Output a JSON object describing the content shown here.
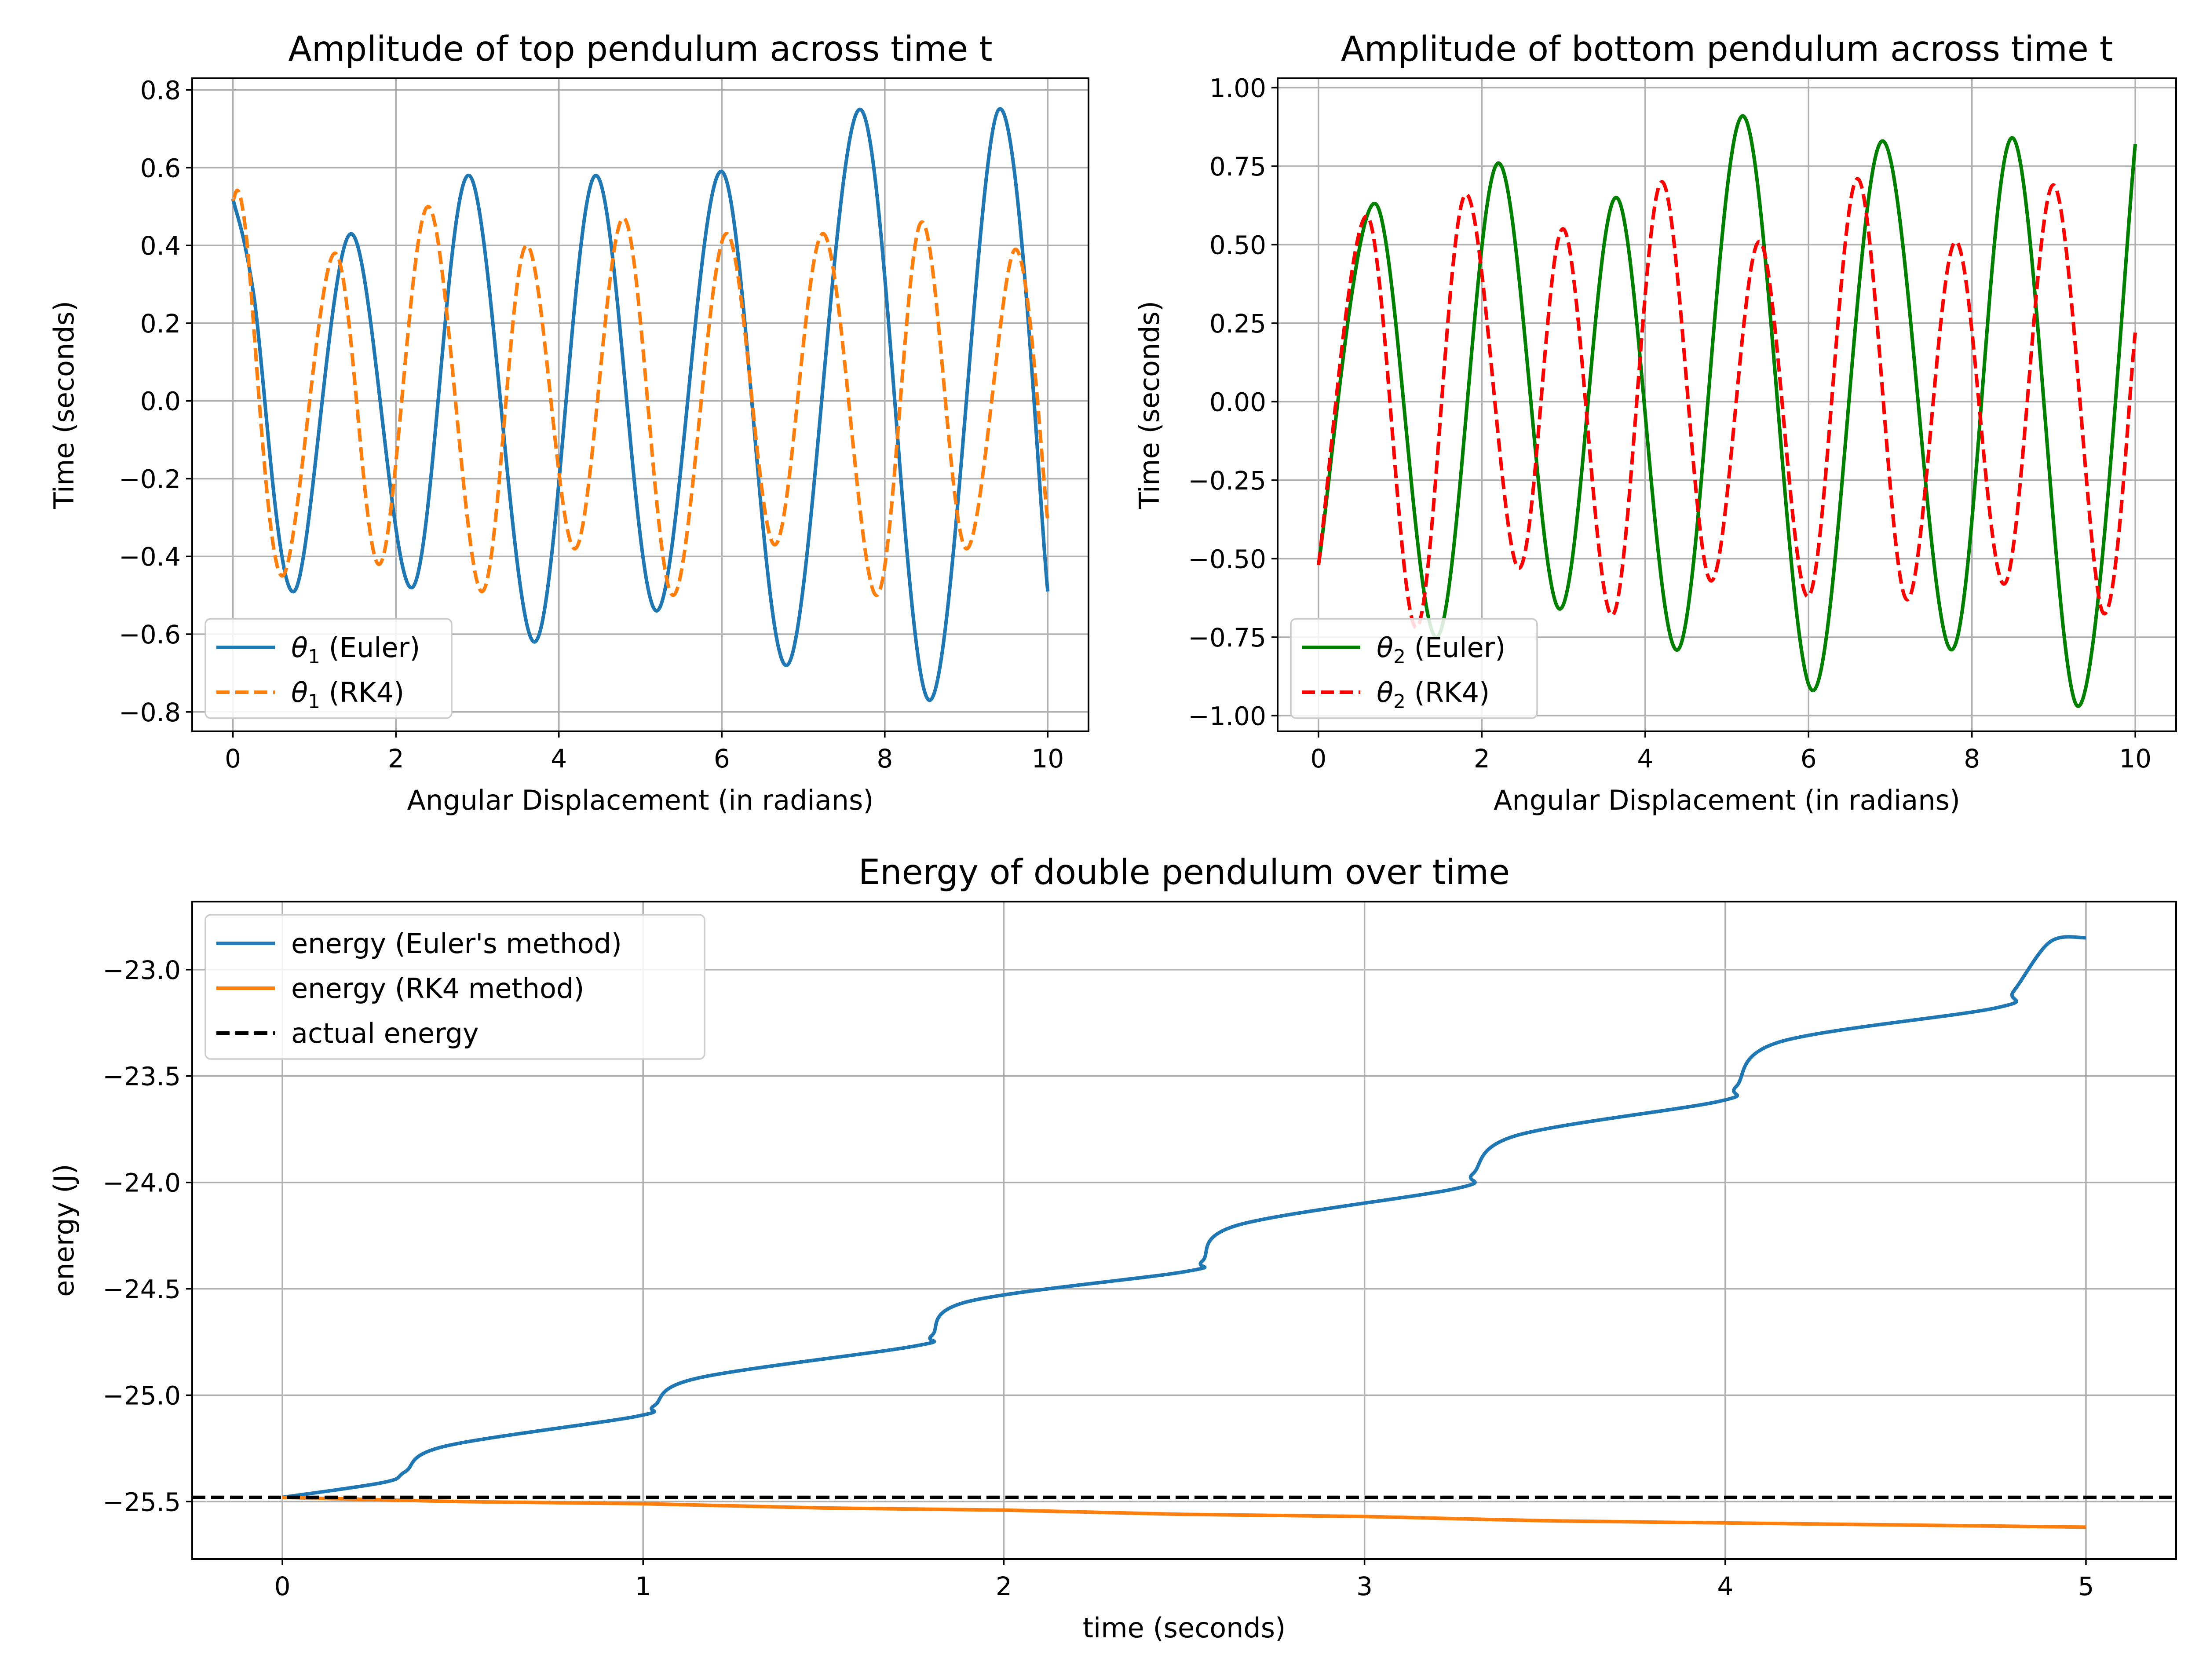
{
  "chart_data": [
    {
      "type": "line",
      "title": "Amplitude of top pendulum across time t",
      "xlabel": "Angular Displacement (in radians)",
      "ylabel": "Time (seconds)",
      "xlim": [
        -0.5,
        10.5
      ],
      "ylim": [
        -0.85,
        0.83
      ],
      "xticks": [
        0,
        2,
        4,
        6,
        8,
        10
      ],
      "xtick_labels": [
        "0",
        "2",
        "4",
        "6",
        "8",
        "10"
      ],
      "yticks": [
        -0.8,
        -0.6,
        -0.4,
        -0.2,
        0.0,
        0.2,
        0.4,
        0.6,
        0.8
      ],
      "ytick_labels": [
        "−0.8",
        "−0.6",
        "−0.4",
        "−0.2",
        "0.0",
        "0.2",
        "0.4",
        "0.6",
        "0.8"
      ],
      "grid": true,
      "legend_loc": "lower left",
      "series": [
        {
          "name": "θ1 (Euler)",
          "label_symbol": "θ",
          "label_sub": "1",
          "label_suffix": " (Euler)",
          "color": "#1f77b4",
          "dash": "solid",
          "x": [
            0,
            0.25,
            0.75,
            1.45,
            2.2,
            2.9,
            3.7,
            4.45,
            5.2,
            6.0,
            6.8,
            7.7,
            8.55,
            9.4,
            10
          ],
          "y": [
            0.52,
            0.28,
            -0.49,
            0.43,
            -0.48,
            0.58,
            -0.62,
            0.58,
            -0.54,
            0.59,
            -0.68,
            0.75,
            -0.77,
            0.75,
            -0.49
          ]
        },
        {
          "name": "θ1 (RK4)",
          "label_symbol": "θ",
          "label_sub": "1",
          "label_suffix": " (RK4)",
          "color": "#ff7f0e",
          "dash": "dashed",
          "x": [
            0,
            0.15,
            0.6,
            1.25,
            1.8,
            2.4,
            3.05,
            3.6,
            4.2,
            4.8,
            5.4,
            6.05,
            6.65,
            7.25,
            7.9,
            8.45,
            9.0,
            9.6,
            10
          ],
          "y": [
            0.52,
            0.45,
            -0.45,
            0.38,
            -0.42,
            0.5,
            -0.49,
            0.4,
            -0.38,
            0.47,
            -0.5,
            0.43,
            -0.37,
            0.43,
            -0.5,
            0.46,
            -0.38,
            0.39,
            -0.31
          ]
        }
      ]
    },
    {
      "type": "line",
      "title": "Amplitude of bottom pendulum across time t",
      "xlabel": "Angular Displacement (in radians)",
      "ylabel": "Time (seconds)",
      "xlim": [
        -0.5,
        10.5
      ],
      "ylim": [
        -1.05,
        1.03
      ],
      "xticks": [
        0,
        2,
        4,
        6,
        8,
        10
      ],
      "xtick_labels": [
        "0",
        "2",
        "4",
        "6",
        "8",
        "10"
      ],
      "yticks": [
        -1.0,
        -0.75,
        -0.5,
        -0.25,
        0.0,
        0.25,
        0.5,
        0.75,
        1.0
      ],
      "ytick_labels": [
        "−1.00",
        "−0.75",
        "−0.50",
        "−0.25",
        "0.00",
        "0.25",
        "0.50",
        "0.75",
        "1.00"
      ],
      "grid": true,
      "legend_loc": "lower left",
      "series": [
        {
          "name": "θ2 (Euler)",
          "label_symbol": "θ",
          "label_sub": "2",
          "label_suffix": " (Euler)",
          "color": "#008000",
          "dash": "solid",
          "x": [
            0,
            0.7,
            1.45,
            2.2,
            2.95,
            3.65,
            4.4,
            5.2,
            6.05,
            6.9,
            7.75,
            8.5,
            9.3,
            10
          ],
          "y": [
            -0.52,
            0.63,
            -0.75,
            0.76,
            -0.66,
            0.65,
            -0.79,
            0.91,
            -0.92,
            0.83,
            -0.79,
            0.84,
            -0.97,
            0.82
          ]
        },
        {
          "name": "θ2 (RK4)",
          "label_symbol": "θ",
          "label_sub": "2",
          "label_suffix": " (RK4)",
          "color": "#ff0000",
          "dash": "dashed",
          "x": [
            0,
            0.6,
            1.2,
            1.8,
            2.45,
            3.0,
            3.6,
            4.2,
            4.8,
            5.4,
            6.0,
            6.6,
            7.2,
            7.8,
            8.4,
            9.0,
            9.6,
            10
          ],
          "y": [
            -0.52,
            0.59,
            -0.72,
            0.66,
            -0.53,
            0.55,
            -0.68,
            0.7,
            -0.57,
            0.51,
            -0.62,
            0.71,
            -0.63,
            0.51,
            -0.58,
            0.69,
            -0.67,
            0.22
          ]
        }
      ]
    },
    {
      "type": "line",
      "title": "Energy of double pendulum over time",
      "xlabel": "time (seconds)",
      "ylabel": "energy (J)",
      "xlim": [
        -0.25,
        5.25
      ],
      "ylim": [
        -25.77,
        -22.68
      ],
      "xticks": [
        0,
        1,
        2,
        3,
        4,
        5
      ],
      "xtick_labels": [
        "0",
        "1",
        "2",
        "3",
        "4",
        "5"
      ],
      "yticks": [
        -25.5,
        -25.0,
        -24.5,
        -24.0,
        -23.5,
        -23.0
      ],
      "ytick_labels": [
        "−25.5",
        "−25.0",
        "−24.5",
        "−24.0",
        "−23.5",
        "−23.0"
      ],
      "grid": true,
      "legend_loc": "upper left",
      "series": [
        {
          "name": "energy (Euler's method)",
          "color": "#1f77b4",
          "dash": "solid",
          "x": [
            0,
            0.28,
            0.34,
            0.45,
            0.98,
            1.03,
            1.15,
            1.75,
            1.8,
            1.9,
            2.5,
            2.55,
            2.65,
            3.25,
            3.3,
            3.42,
            3.98,
            4.03,
            4.15,
            4.75,
            4.8,
            4.9,
            5.0
          ],
          "y": [
            -25.48,
            -25.41,
            -25.36,
            -25.24,
            -25.1,
            -25.05,
            -24.92,
            -24.77,
            -24.72,
            -24.56,
            -24.42,
            -24.37,
            -24.2,
            -24.03,
            -23.96,
            -23.78,
            -23.62,
            -23.55,
            -23.34,
            -23.18,
            -23.1,
            -22.87,
            -22.85
          ]
        },
        {
          "name": "energy (RK4 method)",
          "color": "#ff7f0e",
          "dash": "solid",
          "x": [
            0,
            0.5,
            1.0,
            1.5,
            2.0,
            2.5,
            3.0,
            3.5,
            4.0,
            4.5,
            5.0
          ],
          "y": [
            -25.48,
            -25.5,
            -25.51,
            -25.53,
            -25.54,
            -25.56,
            -25.57,
            -25.59,
            -25.6,
            -25.61,
            -25.62
          ]
        },
        {
          "name": "actual energy",
          "color": "#000000",
          "dash": "dashed",
          "hline": true,
          "x": [
            -0.25,
            5.25
          ],
          "y": [
            -25.48,
            -25.48
          ]
        }
      ]
    }
  ]
}
